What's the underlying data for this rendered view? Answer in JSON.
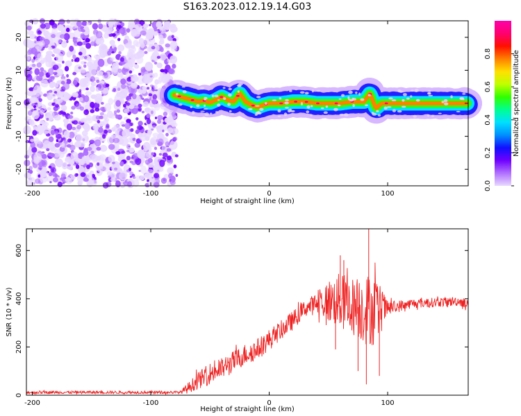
{
  "figure": {
    "title": "S163.2023.012.19.14.G03"
  },
  "colors": {
    "snr_line": "#ee2222",
    "colormap": [
      "#ffffff",
      "#e8d8ff",
      "#b070ff",
      "#7000ff",
      "#1010ff",
      "#0090ff",
      "#00e0ff",
      "#00ff90",
      "#30ff00",
      "#c0ff00",
      "#ffe000",
      "#ff8000",
      "#ff1000",
      "#ff0070",
      "#ff00aa"
    ]
  },
  "chart_data": [
    {
      "type": "heatmap",
      "xlabel": "Height of straight line (km)",
      "ylabel": "Frequency (Hz)",
      "xlim": [
        -205,
        168
      ],
      "ylim": [
        -25,
        25
      ],
      "xticks": [
        "-200",
        "-100",
        "0",
        "100"
      ],
      "yticks": [
        "-20",
        "-10",
        "0",
        "10",
        "20"
      ],
      "colorbar": {
        "label": "Normalized spectral amplitude",
        "range": [
          0.0,
          1.0
        ],
        "ticks": [
          "0.0",
          "0.2",
          "0.4",
          "0.6",
          "0.8"
        ]
      },
      "noise_region_x": [
        -205,
        -78
      ],
      "ridge": {
        "x": [
          -80,
          -70,
          -60,
          -55,
          -50,
          -45,
          -40,
          -35,
          -30,
          -25,
          -20,
          -15,
          -10,
          -5,
          0,
          10,
          20,
          30,
          40,
          50,
          60,
          70,
          80,
          85,
          90,
          95,
          100,
          168
        ],
        "freq": [
          2.5,
          1.5,
          0.5,
          0.8,
          0.2,
          1.0,
          2.0,
          1.0,
          0.5,
          3.0,
          0.5,
          -0.5,
          -1.2,
          -0.5,
          0.0,
          0.0,
          0.5,
          0.5,
          0.0,
          0.0,
          0.0,
          0.5,
          0.5,
          3.0,
          -1.5,
          0.0,
          0.0,
          0.0
        ]
      }
    },
    {
      "type": "line",
      "xlabel": "Height of straight line (km)",
      "ylabel": "SNR (10 * v/v)",
      "xlim": [
        -205,
        168
      ],
      "ylim": [
        0,
        690
      ],
      "xticks": [
        "-200",
        "-100",
        "0",
        "100"
      ],
      "yticks": [
        "0",
        "200",
        "400",
        "600"
      ],
      "series": [
        {
          "x": [
            -205,
            -150,
            -100,
            -75,
            -70,
            -60,
            -50,
            -40,
            -30,
            -20,
            -10,
            0,
            10,
            20,
            30,
            40,
            50,
            60,
            70,
            80,
            90,
            100,
            120,
            140,
            160,
            168
          ],
          "mean": [
            12,
            12,
            12,
            12,
            25,
            60,
            90,
            110,
            140,
            170,
            190,
            230,
            270,
            310,
            360,
            380,
            390,
            390,
            370,
            360,
            350,
            360,
            380,
            385,
            390,
            380
          ],
          "jitter": [
            6,
            6,
            6,
            6,
            20,
            35,
            45,
            45,
            45,
            45,
            45,
            45,
            40,
            40,
            35,
            45,
            90,
            120,
            120,
            150,
            150,
            30,
            20,
            20,
            20,
            20
          ]
        }
      ],
      "spikes": [
        {
          "x": 84,
          "y": 690
        },
        {
          "x": 60,
          "y": 580
        },
        {
          "x": 63,
          "y": 560
        },
        {
          "x": 82,
          "y": 45
        },
        {
          "x": 93,
          "y": 80
        },
        {
          "x": 75,
          "y": 100
        },
        {
          "x": 56,
          "y": 190
        }
      ]
    }
  ]
}
